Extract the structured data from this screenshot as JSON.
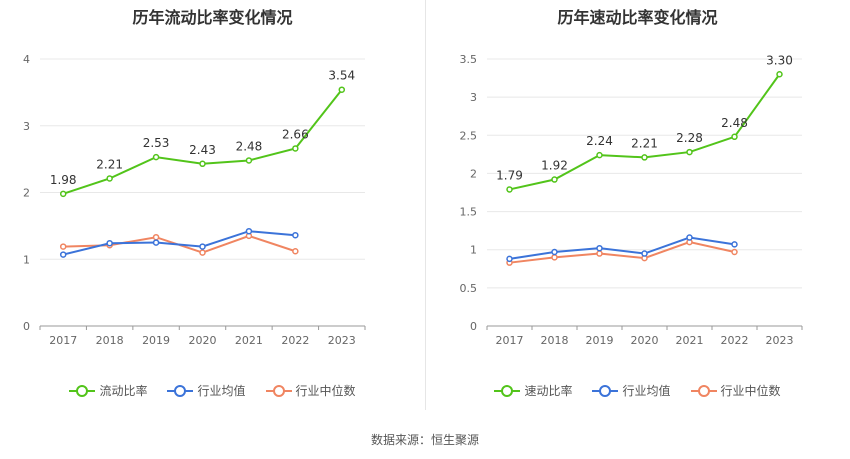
{
  "source": "数据来源：恒生聚源",
  "chart_data": [
    {
      "type": "line",
      "title": "历年流动比率变化情况",
      "categories": [
        "2017",
        "2018",
        "2019",
        "2020",
        "2021",
        "2022",
        "2023"
      ],
      "ylim": [
        0,
        4
      ],
      "yticks": [
        "0",
        "1",
        "2",
        "3",
        "4"
      ],
      "grid": true,
      "legend_position": "bottom",
      "series": [
        {
          "name": "流动比率",
          "color": "#52c41a",
          "values": [
            1.98,
            2.21,
            2.53,
            2.43,
            2.48,
            2.66,
            3.54
          ],
          "labels": [
            "1.98",
            "2.21",
            "2.53",
            "2.43",
            "2.48",
            "2.66",
            "3.54"
          ]
        },
        {
          "name": "行业均值",
          "color": "#3b73d9",
          "values": [
            1.07,
            1.24,
            1.25,
            1.19,
            1.42,
            1.36,
            null
          ]
        },
        {
          "name": "行业中位数",
          "color": "#f08561",
          "values": [
            1.19,
            1.21,
            1.33,
            1.1,
            1.35,
            1.12,
            null
          ]
        }
      ]
    },
    {
      "type": "line",
      "title": "历年速动比率变化情况",
      "categories": [
        "2017",
        "2018",
        "2019",
        "2020",
        "2021",
        "2022",
        "2023"
      ],
      "ylim": [
        0,
        3.5
      ],
      "yticks": [
        "0",
        "0.5",
        "1",
        "1.5",
        "2",
        "2.5",
        "3",
        "3.5"
      ],
      "grid": true,
      "legend_position": "bottom",
      "series": [
        {
          "name": "速动比率",
          "color": "#52c41a",
          "values": [
            1.79,
            1.92,
            2.24,
            2.21,
            2.28,
            2.48,
            3.3
          ],
          "labels": [
            "1.79",
            "1.92",
            "2.24",
            "2.21",
            "2.28",
            "2.48",
            "3.30"
          ]
        },
        {
          "name": "行业均值",
          "color": "#3b73d9",
          "values": [
            0.88,
            0.97,
            1.02,
            0.95,
            1.16,
            1.07,
            null
          ]
        },
        {
          "name": "行业中位数",
          "color": "#f08561",
          "values": [
            0.83,
            0.9,
            0.95,
            0.89,
            1.1,
            0.97,
            null
          ]
        }
      ]
    }
  ]
}
